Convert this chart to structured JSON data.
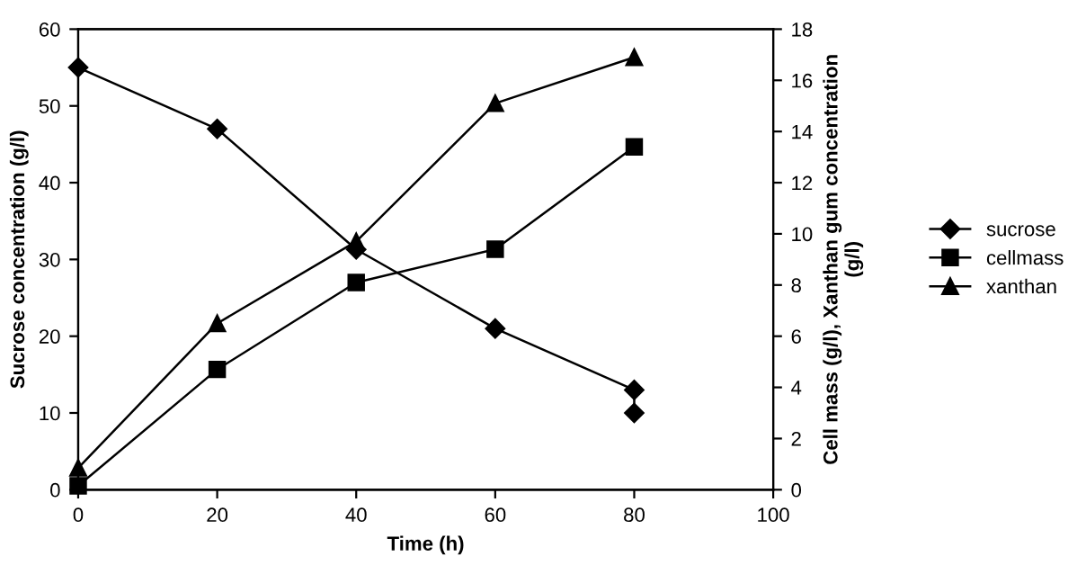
{
  "chart_data": {
    "type": "line",
    "xlabel": "Time (h)",
    "ylabel": "Sucrose concentration (g/l)",
    "y2label": "Cell mass (g/l), Xanthan gum concentration\n(g/l)",
    "xlim": [
      0,
      100
    ],
    "xticks": [
      0,
      20,
      40,
      60,
      80,
      100
    ],
    "ylim": [
      0,
      60
    ],
    "yticks": [
      0,
      10,
      20,
      30,
      40,
      50,
      60
    ],
    "y2lim": [
      0,
      18
    ],
    "y2ticks": [
      0,
      2,
      4,
      6,
      8,
      10,
      12,
      14,
      16,
      18
    ],
    "grid": false,
    "legend": "right",
    "line_style": "solid",
    "series": [
      {
        "name": "sucrose",
        "color": "#000000",
        "marker": "diamond",
        "x": [
          0,
          20,
          40,
          60,
          80,
          80
        ],
        "values": [
          55,
          47,
          31.3,
          21,
          13,
          10
        ]
      },
      {
        "name": "cellmass",
        "color": "#000000",
        "marker": "square",
        "axis": "y2",
        "x": [
          0,
          20,
          40,
          60,
          80
        ],
        "values": [
          0.15,
          4.7,
          8.1,
          9.4,
          13.4
        ]
      },
      {
        "name": "xanthan",
        "color": "#000000",
        "marker": "triangle",
        "axis": "y2",
        "x": [
          0,
          20,
          40,
          60,
          80
        ],
        "values": [
          0.85,
          6.5,
          9.7,
          15.1,
          16.9
        ]
      }
    ]
  }
}
